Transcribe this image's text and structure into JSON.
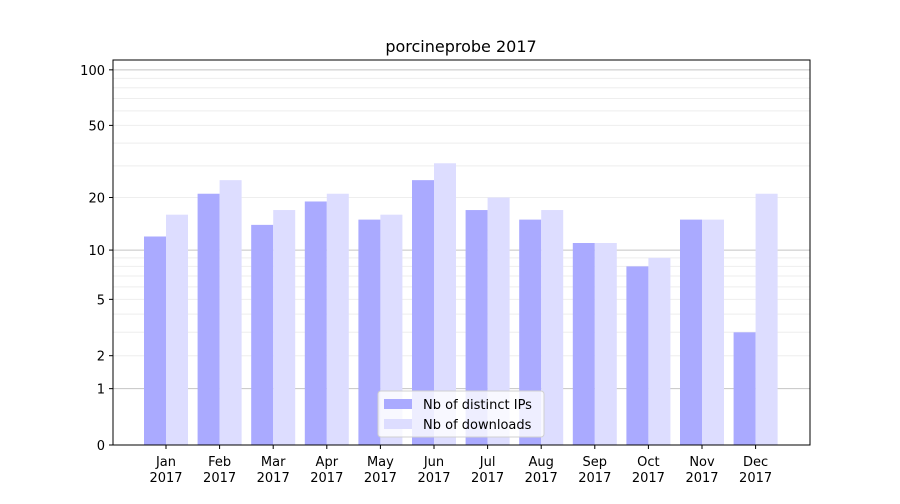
{
  "chart_data": {
    "type": "bar",
    "title": "porcineprobe 2017",
    "xlabel": "",
    "ylabel": "",
    "yscale": "log(1+y) / symlog",
    "ylim": [
      0,
      113
    ],
    "yticks": [
      0,
      1,
      2,
      5,
      10,
      20,
      50,
      100
    ],
    "grid": "horizontal, major and minor",
    "legend_position": "lower center",
    "categories": [
      "Jan\n2017",
      "Feb\n2017",
      "Mar\n2017",
      "Apr\n2017",
      "May\n2017",
      "Jun\n2017",
      "Jul\n2017",
      "Aug\n2017",
      "Sep\n2017",
      "Oct\n2017",
      "Nov\n2017",
      "Dec\n2017"
    ],
    "series": [
      {
        "name": "Nb of distinct IPs",
        "color": "#aaaaff",
        "values": [
          12,
          21,
          14,
          19,
          15,
          25,
          17,
          15,
          11,
          8,
          15,
          3
        ]
      },
      {
        "name": "Nb of downloads",
        "color": "#ddddff",
        "values": [
          16,
          25,
          17,
          21,
          16,
          31,
          20,
          17,
          11,
          9,
          15,
          21
        ]
      }
    ]
  }
}
